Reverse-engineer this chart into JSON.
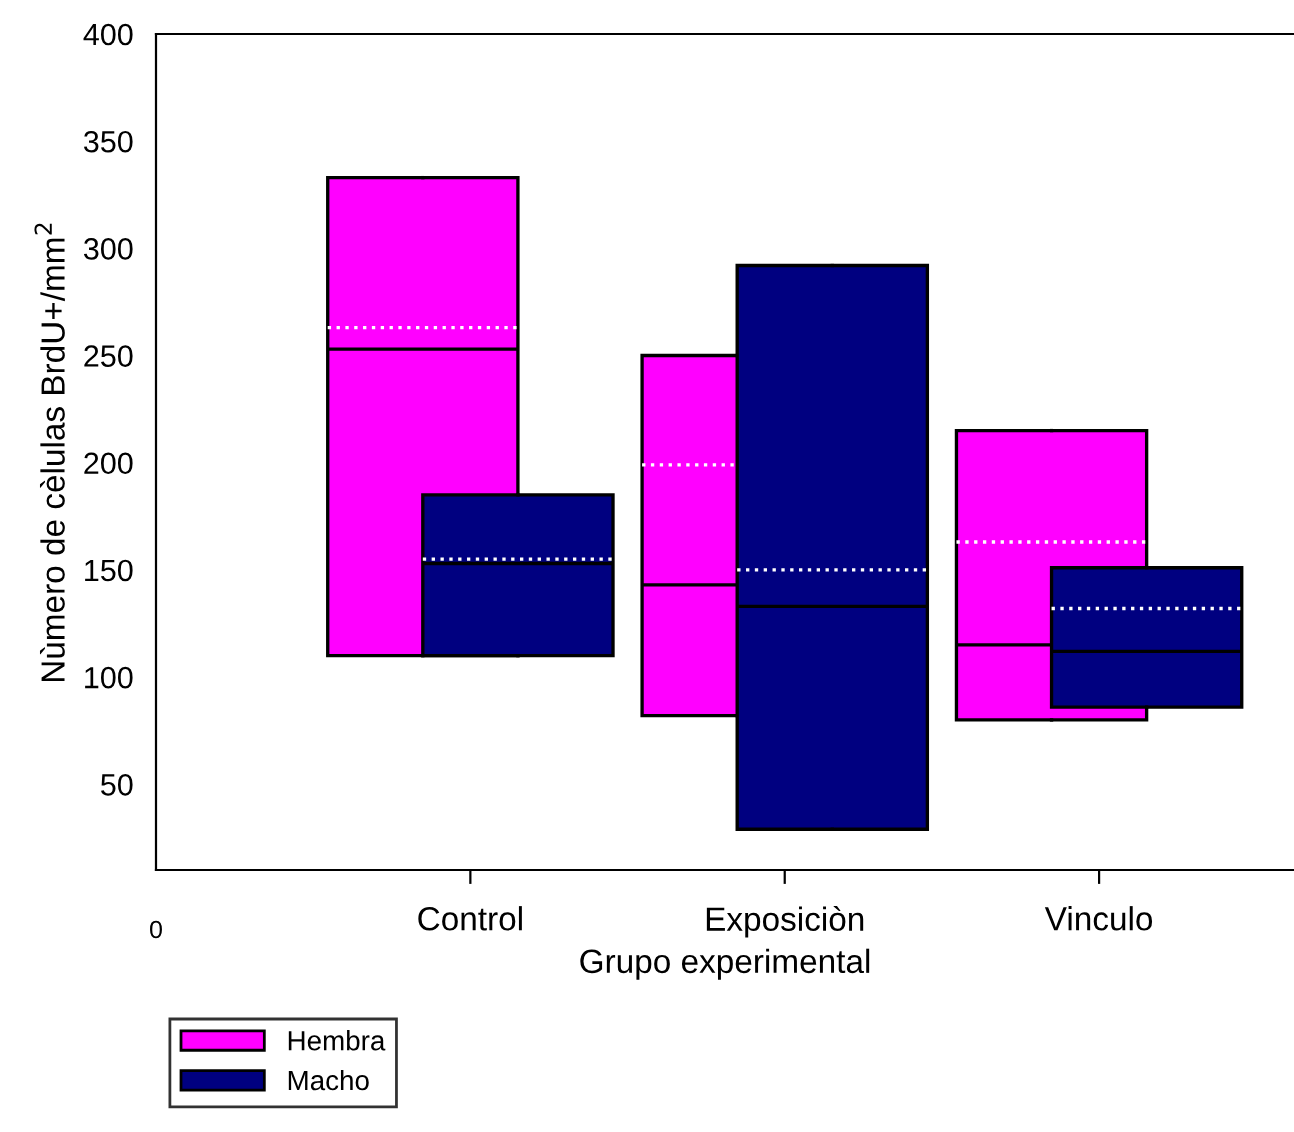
{
  "chart_data": {
    "type": "box",
    "xlabel": "Grupo experimental",
    "ylabel": "Nùmero de cèlulas BrdU+/mm$^{2}$",
    "categories": [
      "Control",
      "Exposiciòn",
      "Vinculo"
    ],
    "annotations": [
      "0"
    ],
    "ylim": [
      10,
      400
    ],
    "yticks": [
      50,
      100,
      150,
      200,
      250,
      300,
      350,
      400
    ],
    "legend": "bottom left",
    "grid": false,
    "series": [
      {
        "name": "Hembra",
        "color": "#ff00ff",
        "boxes": [
          {
            "low": 110,
            "q1": 110,
            "median": 253,
            "q3": 333,
            "high": 333,
            "mean": 263
          },
          {
            "low": 82,
            "q1": 82,
            "median": 143,
            "q3": 250,
            "high": 250,
            "mean": 199
          },
          {
            "low": 80,
            "q1": 80,
            "median": 115,
            "q3": 215,
            "high": 215,
            "mean": 163
          }
        ]
      },
      {
        "name": "Macho",
        "color": "#000080",
        "boxes": [
          {
            "low": 110,
            "q1": 110,
            "median": 153,
            "q3": 185,
            "high": 185,
            "mean": 155
          },
          {
            "low": 29,
            "q1": 29,
            "median": 133,
            "q3": 292,
            "high": 292,
            "mean": 150
          },
          {
            "low": 86,
            "q1": 86,
            "median": 112,
            "q3": 151,
            "high": 151,
            "mean": 132
          }
        ]
      }
    ]
  }
}
